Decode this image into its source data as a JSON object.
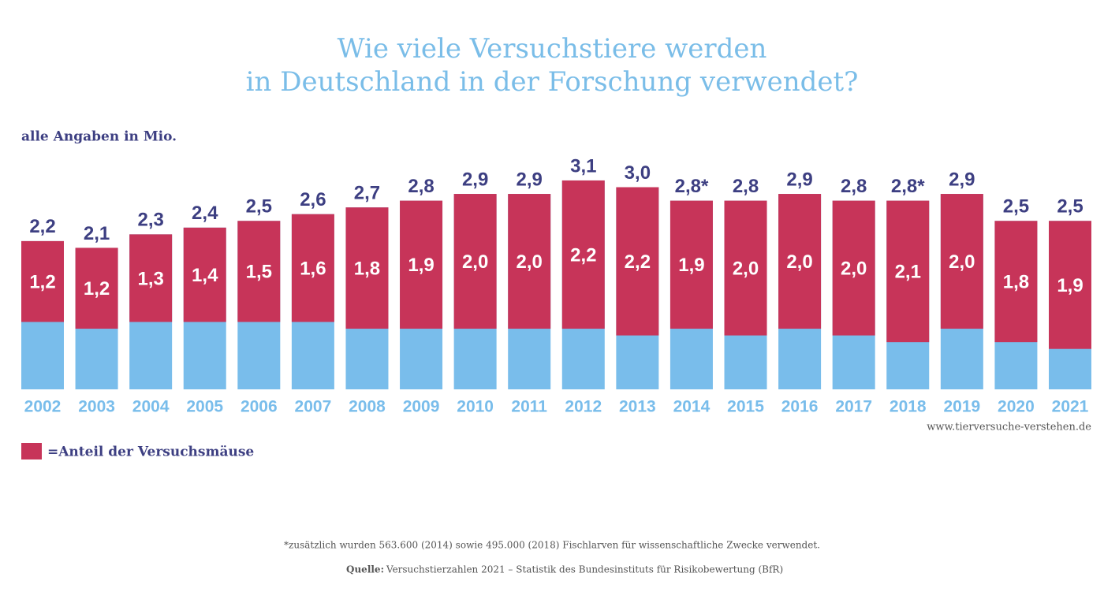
{
  "chart_data": {
    "type": "bar",
    "title": [
      "Wie viele Versuchstiere werden",
      "in Deutschland in der Forschung verwendet?"
    ],
    "subtitle": "alle Angaben in Mio.",
    "categories": [
      "2002",
      "2003",
      "2004",
      "2005",
      "2006",
      "2007",
      "2008",
      "2009",
      "2010",
      "2011",
      "2012",
      "2013",
      "2014",
      "2015",
      "2016",
      "2017",
      "2018",
      "2019",
      "2020",
      "2021"
    ],
    "totals": {
      "color": "#79bdeb",
      "values": [
        2.2,
        2.1,
        2.3,
        2.4,
        2.5,
        2.6,
        2.7,
        2.8,
        2.9,
        2.9,
        3.1,
        3.0,
        2.8,
        2.8,
        2.9,
        2.8,
        2.8,
        2.9,
        2.5,
        2.5
      ],
      "value_labels": [
        "2,2",
        "2,1",
        "2,3",
        "2,4",
        "2,5",
        "2,6",
        "2,7",
        "2,8",
        "2,9",
        "2,9",
        "3,1",
        "3,0",
        "2,8*",
        "2,8",
        "2,9",
        "2,8",
        "2,8*",
        "2,9",
        "2,5",
        "2,5"
      ]
    },
    "series": [
      {
        "name": "=Anteil der Versuchsmäuse",
        "color": "#c73459",
        "values": [
          1.2,
          1.2,
          1.3,
          1.4,
          1.5,
          1.6,
          1.8,
          1.9,
          2.0,
          2.0,
          2.2,
          2.2,
          1.9,
          2.0,
          2.0,
          2.0,
          2.1,
          2.0,
          1.8,
          1.9
        ],
        "value_labels": [
          "1,2",
          "1,2",
          "1,3",
          "1,4",
          "1,5",
          "1,6",
          "1,8",
          "1,9",
          "2,0",
          "2,0",
          "2,2",
          "2,2",
          "1,9",
          "2,0",
          "2,0",
          "2,0",
          "2,1",
          "2,0",
          "1,8",
          "1,9"
        ]
      }
    ],
    "source_url": "www.tierversuche-verstehen.de",
    "footnote": "*zusätzlich wurden 563.600 (2014) sowie 495.000 (2018) Fischlarven für wissenschaftliche Zwecke verwendet.",
    "source_label": "Quelle:",
    "source_text": "Versuchstierzahlen 2021 – Statistik des Bundesinstituts für Risikobewertung (BfR)"
  }
}
